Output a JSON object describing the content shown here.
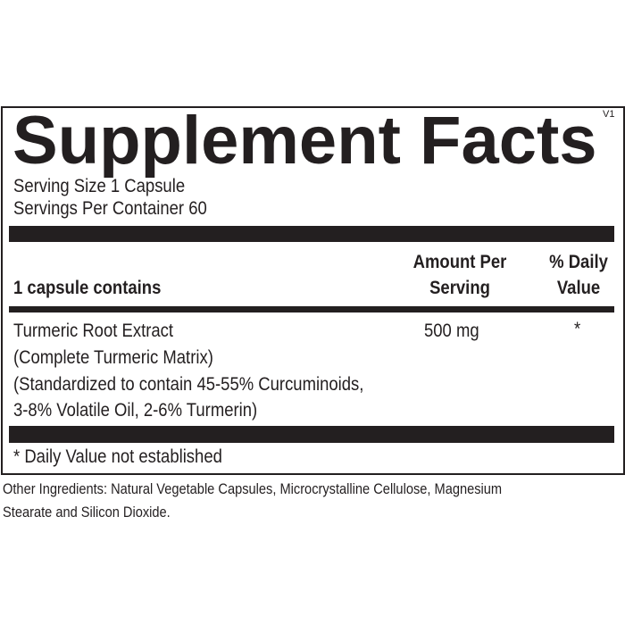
{
  "label": {
    "version": "V1",
    "title": "Supplement Facts",
    "serving_size": "Serving Size 1 Capsule",
    "servings_per_container": "Servings Per Container 60",
    "header": {
      "contains": "1 capsule contains",
      "amount_line1": "Amount Per",
      "amount_line2": "Serving",
      "dv_line1": "% Daily",
      "dv_line2": "Value"
    },
    "ingredients": [
      {
        "name_lines": [
          "Turmeric Root Extract",
          "(Complete Turmeric Matrix)",
          "(Standardized to contain 45-55% Curcuminoids,",
          "3-8% Volatile Oil, 2-6% Turmerin)"
        ],
        "amount": "500 mg",
        "daily_value": "*"
      }
    ],
    "footnote": "* Daily Value not established"
  },
  "other_ingredients": {
    "line1": "Other Ingredients: Natural Vegetable Capsules, Microcrystalline Cellulose, Magnesium",
    "line2": "Stearate and Silicon Dioxide."
  }
}
